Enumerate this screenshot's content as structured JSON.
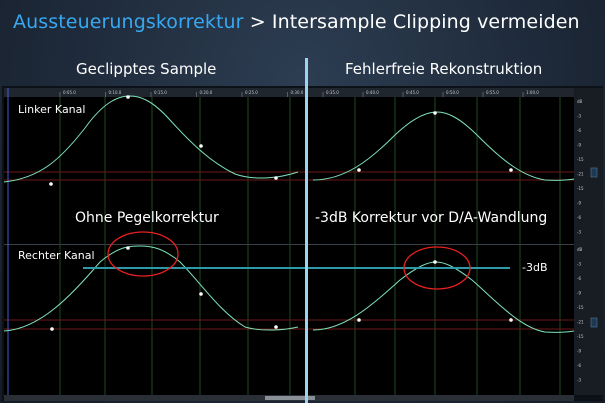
{
  "title": {
    "accent": "Aussteuerungskorrektur",
    "separator": ">",
    "rest": "Intersample Clipping vermeiden"
  },
  "headings": {
    "left": "Geclipptes Sample",
    "right": "Fehlerfreie Rekonstruktion"
  },
  "labels": {
    "left_channel": "Linker Kanal",
    "right_channel": "Rechter Kanal",
    "no_correction": "Ohne Pegelkorrektur",
    "correction": "-3dB Korrektur vor D/A-Wandlung",
    "minus3db": "-3dB"
  },
  "ruler": {
    "left_ticks": [
      "0:05.0",
      "0:10.0",
      "0:15.0",
      "0:20.0",
      "0:25.0",
      "0:30.0"
    ],
    "right_ticks": [
      "0:35.0",
      "0:40.0",
      "0:45.0",
      "0:50.0",
      "0:55.0",
      "1:00.0"
    ]
  },
  "db_scale": [
    "dB",
    "-3",
    "-6",
    "-9",
    "-15",
    "-21",
    "-15",
    "-9",
    "-6",
    "-3"
  ],
  "colors": {
    "accent": "#38a8f0",
    "waveform": "#7ee3b8",
    "ellipse": "#e82020",
    "divider": "#9bd4ee",
    "reference_line": "#2e9aa8"
  }
}
